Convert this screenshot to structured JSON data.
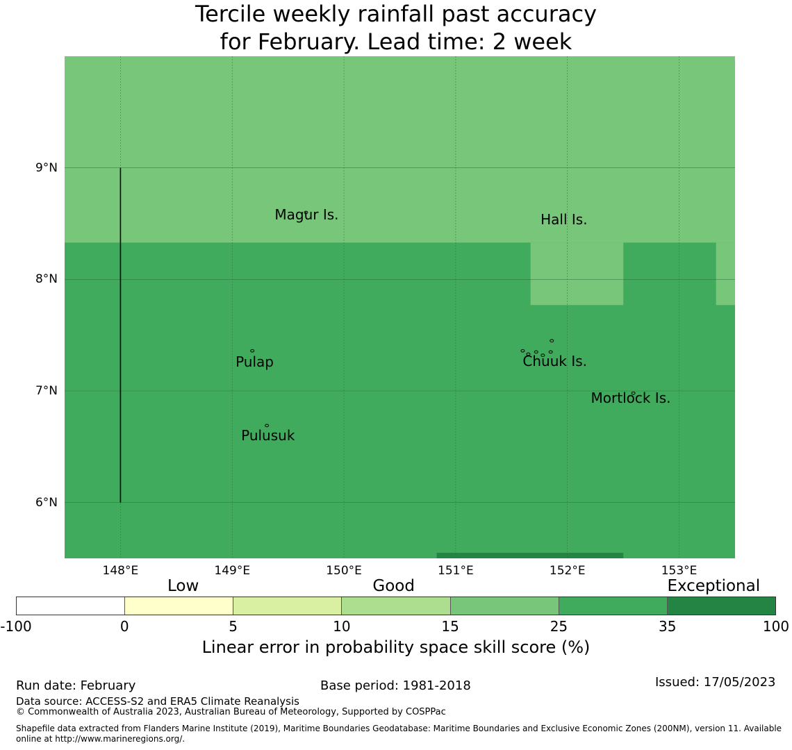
{
  "title": {
    "line1": "Tercile weekly rainfall past accuracy",
    "line2": "for February. Lead time: 2 week"
  },
  "map": {
    "lat_range": [
      5.5,
      10.0
    ],
    "lon_range": [
      147.5,
      153.5
    ],
    "lat_ticks": [
      {
        "value": 9,
        "label": "9°N"
      },
      {
        "value": 8,
        "label": "8°N"
      },
      {
        "value": 7,
        "label": "7°N"
      },
      {
        "value": 6,
        "label": "6°N"
      }
    ],
    "lon_ticks": [
      {
        "value": 148,
        "label": "148°E"
      },
      {
        "value": 149,
        "label": "149°E"
      },
      {
        "value": 150,
        "label": "150°E"
      },
      {
        "value": 151,
        "label": "151°E"
      },
      {
        "value": 152,
        "label": "152°E"
      },
      {
        "value": 153,
        "label": "153°E"
      }
    ],
    "skill_cells": [
      {
        "lon0": 147.5,
        "lon1": 153.5,
        "lat0": 5.5,
        "lat1": 10.0,
        "category": "25-35",
        "color": "#41ab5d"
      },
      {
        "lon0": 147.5,
        "lon1": 153.5,
        "lat0": 8.33,
        "lat1": 10.0,
        "category": "15-25",
        "color": "#78c679"
      },
      {
        "lon0": 151.67,
        "lon1": 152.5,
        "lat0": 7.77,
        "lat1": 8.33,
        "category": "15-25",
        "color": "#78c679"
      },
      {
        "lon0": 153.33,
        "lon1": 153.5,
        "lat0": 7.77,
        "lat1": 8.33,
        "category": "15-25",
        "color": "#78c679"
      },
      {
        "lon0": 150.83,
        "lon1": 152.5,
        "lat0": 5.5,
        "lat1": 5.55,
        "category": "35-100",
        "color": "#238443"
      }
    ],
    "eez_line": {
      "lon": 148.0,
      "lat_from": 6.0,
      "lat_to": 9.0
    },
    "places": [
      {
        "name": "Magur Is.",
        "lon": 149.38,
        "lat": 8.58,
        "islands": [
          {
            "lon": 149.66,
            "lat": 8.6
          }
        ]
      },
      {
        "name": "Hall Is.",
        "lon": 151.76,
        "lat": 8.54,
        "islands": []
      },
      {
        "name": "Pulap",
        "lon": 149.03,
        "lat": 7.26,
        "islands": [
          {
            "lon": 149.18,
            "lat": 7.36
          }
        ]
      },
      {
        "name": "Chuuk Is.",
        "lon": 151.6,
        "lat": 7.27,
        "islands": [
          {
            "lon": 151.6,
            "lat": 7.36
          },
          {
            "lon": 151.65,
            "lat": 7.33
          },
          {
            "lon": 151.72,
            "lat": 7.35
          },
          {
            "lon": 151.78,
            "lat": 7.32
          },
          {
            "lon": 151.85,
            "lat": 7.35
          },
          {
            "lon": 151.86,
            "lat": 7.45
          }
        ]
      },
      {
        "name": "Mortlock Is.",
        "lon": 152.21,
        "lat": 6.94,
        "islands": [
          {
            "lon": 152.59,
            "lat": 6.98
          }
        ]
      },
      {
        "name": "Pulusuk",
        "lon": 149.08,
        "lat": 6.6,
        "islands": [
          {
            "lon": 149.31,
            "lat": 6.69
          }
        ]
      }
    ]
  },
  "colorbar": {
    "classes": [
      {
        "label": "Low",
        "position": 0.22
      },
      {
        "label": "Good",
        "position": 0.497
      },
      {
        "label": "Exceptional",
        "position": 0.918
      }
    ],
    "segments": [
      {
        "from": "-100",
        "to": "0",
        "color": "#ffffff"
      },
      {
        "from": "0",
        "to": "5",
        "color": "#ffffcc"
      },
      {
        "from": "5",
        "to": "10",
        "color": "#d9f0a3"
      },
      {
        "from": "10",
        "to": "15",
        "color": "#addd8e"
      },
      {
        "from": "15",
        "to": "25",
        "color": "#78c679"
      },
      {
        "from": "25",
        "to": "35",
        "color": "#41ab5d"
      },
      {
        "from": "35",
        "to": "100",
        "color": "#238443"
      }
    ],
    "ticks": [
      "-100",
      "0",
      "5",
      "10",
      "15",
      "25",
      "35",
      "100"
    ],
    "label": "Linear error in probability space skill score (%)"
  },
  "footer": {
    "run_date": "Run date: February",
    "base_period": "Base period: 1981-2018",
    "issued": "Issued: 17/05/2023",
    "data_source": "Data source: ACCESS-S2 and ERA5 Climate Reanalysis",
    "copyright": "© Commonwealth of Australia 2023, Australian Bureau of Meteorology, Supported by COSPPac",
    "shapefile": "Shapefile data extracted from Flanders Marine Institute (2019), Maritime Boundaries Geodatabase: Maritime Boundaries and Exclusive Economic Zones (200NM), version 11. Available online at http://www.marineregions.org/."
  }
}
